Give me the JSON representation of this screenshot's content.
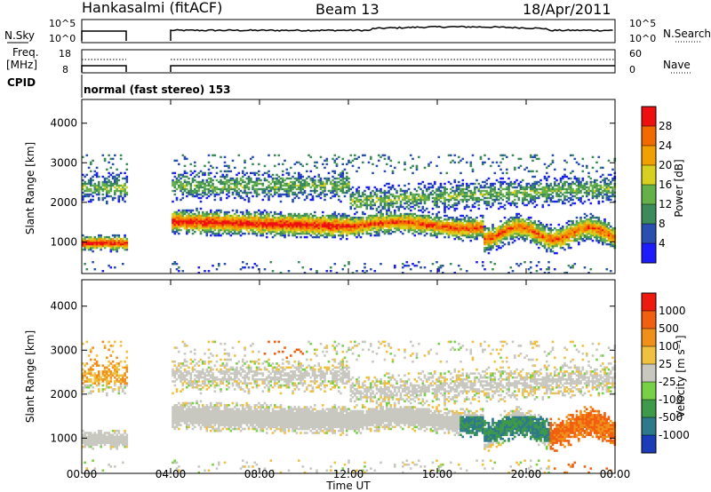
{
  "header": {
    "station": "Hankasalmi (fitACF)",
    "beam": "Beam 13",
    "date": "18/Apr/2011"
  },
  "top_panels": {
    "nsky_label": "N.Sky",
    "nsearch_label": "N.Search",
    "noise_ticks": [
      "10^5",
      "10^0"
    ],
    "freq_label_1": "Freq.",
    "freq_label_2": "[MHz]",
    "freq_ticks": [
      "18",
      "8"
    ],
    "nave_label": "Nave",
    "nave_ticks": [
      "60",
      "0"
    ],
    "cpid_label": "CPID",
    "cpid_text": "normal (fast stereo) 153"
  },
  "power_panel": {
    "ylabel": "Slant Range [km]",
    "yticks": [
      "4000",
      "3000",
      "2000",
      "1000"
    ],
    "colorbar_label": "Power [dB]",
    "colorbar_ticks": [
      "28",
      "24",
      "20",
      "16",
      "12",
      "8",
      "4"
    ],
    "colors": [
      "#1c1cff",
      "#2a4fb0",
      "#3d8a5a",
      "#66b04a",
      "#d8d020",
      "#f2a000",
      "#f06a00",
      "#ee1010"
    ]
  },
  "velocity_panel": {
    "ylabel": "Slant Range [km]",
    "yticks": [
      "4000",
      "3000",
      "2000",
      "1000"
    ],
    "colorbar_label": "Velocity [m s⁻¹]",
    "colorbar_ticks": [
      "1000",
      "500",
      "100",
      "25",
      "-25",
      "-100",
      "-500",
      "-1000"
    ],
    "colors": [
      "#1c3cb8",
      "#2e7a8a",
      "#3e9a4a",
      "#78d048",
      "#c8c8c0",
      "#f0c040",
      "#f0901a",
      "#f06010",
      "#ee1a10"
    ]
  },
  "xaxis": {
    "xlabel": "Time UT",
    "ticks": [
      "00:00",
      "04:00",
      "08:00",
      "12:00",
      "16:00",
      "20:00",
      "00:00"
    ]
  },
  "chart_data": {
    "type": "heatmap",
    "title": "Hankasalmi (fitACF)  Beam 13  18/Apr/2011",
    "xlabel": "Time UT",
    "ylabel": "Slant Range [km]",
    "xlim_hours": [
      0,
      24
    ],
    "ylim_km": [
      200,
      4600
    ],
    "data_gap_hours": [
      2.0,
      4.0
    ],
    "power_db_range": [
      0,
      30
    ],
    "velocity_range": [
      -1000,
      1000
    ],
    "power_features": [
      {
        "t0": 0.0,
        "t1": 2.0,
        "r0": 800,
        "r1": 1050,
        "power_db": 28
      },
      {
        "t0": 0.0,
        "t1": 2.0,
        "r0": 1900,
        "r1": 2800,
        "power_db": 12
      },
      {
        "t0": 4.0,
        "t1": 12.0,
        "r0": 1300,
        "r1": 1750,
        "power_db": 28
      },
      {
        "t0": 12.0,
        "t1": 18.0,
        "r0": 1250,
        "r1": 1650,
        "power_db": 26
      },
      {
        "t0": 18.0,
        "t1": 24.0,
        "r0": 1000,
        "r1": 1500,
        "power_db": 24
      },
      {
        "t0": 8.0,
        "t1": 24.0,
        "r0": 1800,
        "r1": 2400,
        "power_db": 10
      }
    ]
  }
}
